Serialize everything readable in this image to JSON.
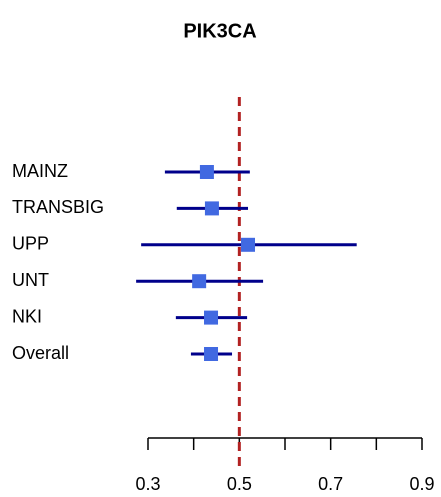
{
  "chart_data": {
    "type": "forest",
    "title": "PIK3CA",
    "categories": [
      "MAINZ",
      "TRANSBIG",
      "UPP",
      "UNT",
      "NKI",
      "Overall"
    ],
    "estimates": [
      0.429,
      0.44,
      0.519,
      0.412,
      0.438,
      0.438
    ],
    "lower": [
      0.337,
      0.363,
      0.285,
      0.274,
      0.361,
      0.394
    ],
    "upper": [
      0.523,
      0.519,
      0.757,
      0.552,
      0.517,
      0.484
    ],
    "point_color": "#4169e1",
    "interval_color": "#00008b",
    "reference_line": 0.5,
    "reference_color": "#b22222",
    "xlim": [
      0.3,
      0.9
    ],
    "xticks": [
      0.3,
      0.5,
      0.7,
      0.9
    ],
    "xminor_ticks": [
      0.4,
      0.6,
      0.8
    ]
  }
}
